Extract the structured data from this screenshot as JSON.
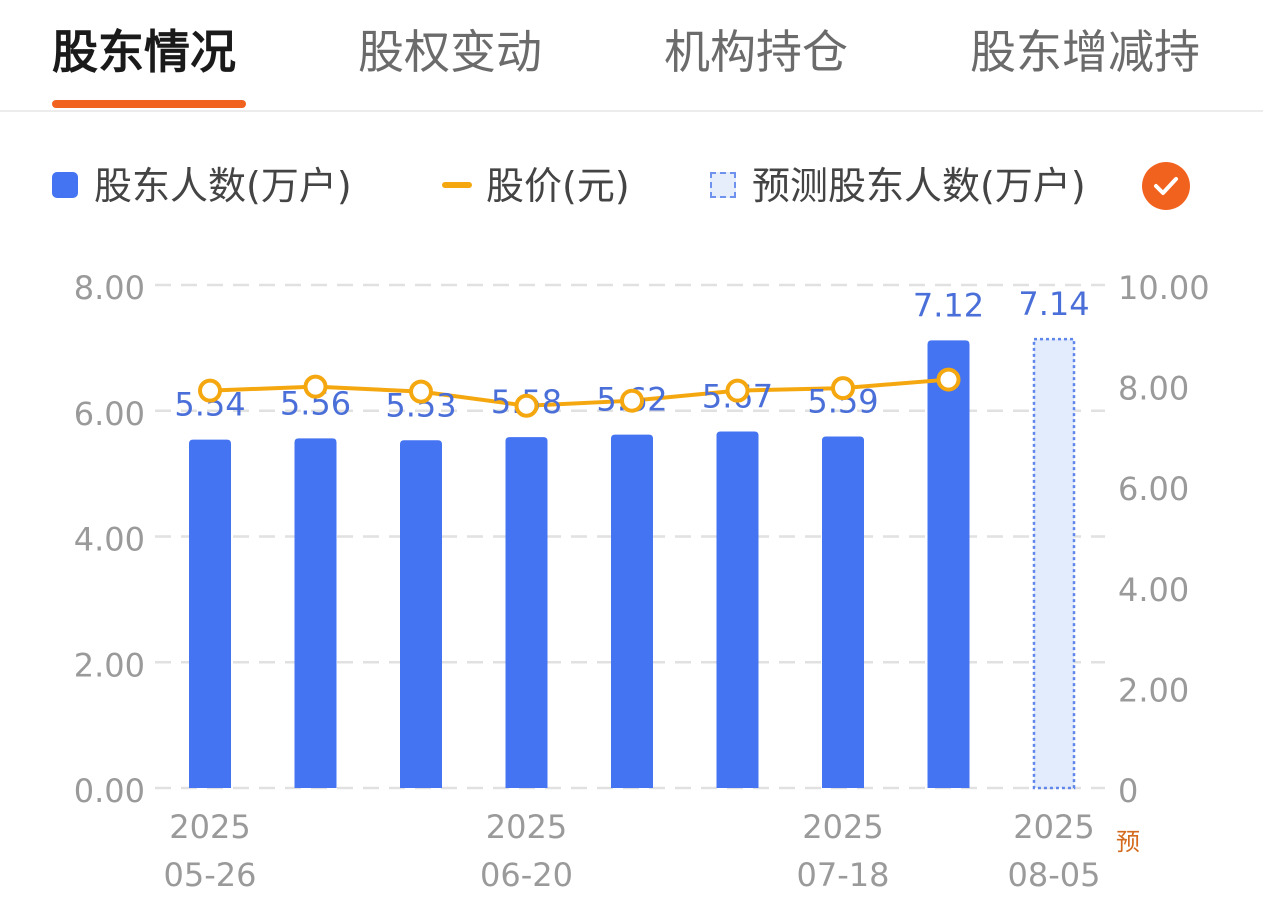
{
  "tabs": [
    {
      "label": "股东情况",
      "active": true
    },
    {
      "label": "股权变动",
      "active": false
    },
    {
      "label": "机构持仓",
      "active": false
    },
    {
      "label": "股东增减持",
      "active": false
    }
  ],
  "legend": [
    {
      "label": "股东人数(万户)",
      "color": "#4574f3"
    },
    {
      "label": "股价(元)",
      "color": "#f5a70f"
    },
    {
      "label": "预测股东人数(万户)",
      "color": "#8aa8f0"
    }
  ],
  "accent_color": "#f2621f",
  "check_icon": "checkmark-icon",
  "chart_data": {
    "type": "bar",
    "series": [
      {
        "name": "股东人数(万户)",
        "type": "bar",
        "values": [
          5.54,
          5.56,
          5.53,
          5.58,
          5.62,
          5.67,
          5.59,
          7.12
        ]
      },
      {
        "name": "股价(元)",
        "type": "line",
        "axis": "right",
        "values": [
          7.9,
          7.98,
          7.88,
          7.6,
          7.7,
          7.9,
          7.95,
          8.12
        ]
      },
      {
        "name": "预测股东人数(万户)",
        "type": "bar",
        "predicted": true,
        "values": [
          7.14
        ]
      }
    ],
    "data_labels": [
      "5.54",
      "5.56",
      "5.53",
      "5.58",
      "5.62",
      "5.67",
      "5.59",
      "7.12",
      "7.14"
    ],
    "x_ticks": [
      {
        "index": 0,
        "line1": "2025",
        "line2": "05-26"
      },
      {
        "index": 3,
        "line1": "2025",
        "line2": "06-20"
      },
      {
        "index": 6,
        "line1": "2025",
        "line2": "07-18"
      },
      {
        "index": 8,
        "line1": "2025",
        "line2": "08-05",
        "tag": "预"
      }
    ],
    "y_left": {
      "ticks": [
        "0.00",
        "2.00",
        "4.00",
        "6.00",
        "8.00"
      ],
      "range": [
        0,
        8
      ]
    },
    "y_right": {
      "ticks": [
        "0",
        "2.00",
        "4.00",
        "6.00",
        "8.00",
        "10.00"
      ],
      "range": [
        0,
        10
      ]
    },
    "grid": true,
    "legend_position": "top"
  }
}
